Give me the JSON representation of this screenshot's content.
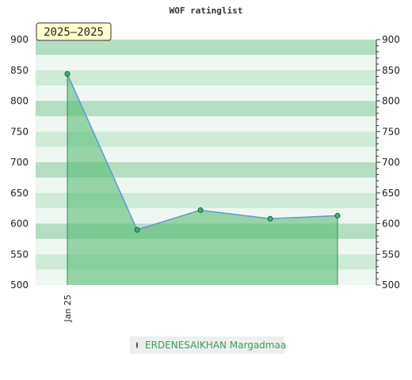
{
  "chart_data": {
    "type": "area",
    "title": "WOF ratinglist",
    "badge": "2025–2025",
    "x_tick_labels": [
      "Jan 25"
    ],
    "ylim": [
      500,
      900
    ],
    "y_ticks": [
      500,
      550,
      600,
      650,
      700,
      750,
      800,
      850,
      900
    ],
    "series": [
      {
        "name": "ERDENESAIKHAN Margadmaa",
        "values": [
          844,
          590,
          622,
          608,
          613
        ]
      }
    ],
    "legend_position": "bottom",
    "colors": {
      "line": "#5b9bd5",
      "fill": "#4fb86b",
      "marker": "#3cb371",
      "band_dark": "#b3dec2",
      "band_mid": "#cdebd7",
      "band_light": "#eef7f1"
    }
  }
}
